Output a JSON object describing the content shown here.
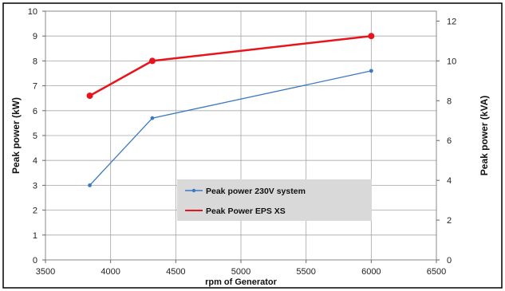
{
  "chart_data": {
    "type": "line",
    "xlabel": "rpm of Generator",
    "ylabel": "Peak power (kW)",
    "y2label": "Peak power (kVA)",
    "xlim": [
      3500,
      6500
    ],
    "ylim": [
      0,
      10
    ],
    "y2lim": [
      0,
      12.5
    ],
    "x_ticks": [
      "3500",
      "4000",
      "4500",
      "5000",
      "5500",
      "6000",
      "6500"
    ],
    "y_ticks": [
      "0",
      "1",
      "2",
      "3",
      "4",
      "5",
      "6",
      "7",
      "8",
      "9",
      "10"
    ],
    "y2_ticks": [
      "0",
      "2",
      "4",
      "6",
      "8",
      "10",
      "12"
    ],
    "grid": true,
    "legend_position": "bottom-center",
    "series": [
      {
        "name": "Peak power 230V system",
        "color": "#3a78c2",
        "axis": "left",
        "x": [
          3840,
          4320,
          6000
        ],
        "y": [
          3.0,
          5.7,
          7.6
        ]
      },
      {
        "name": "Peak Power EPS XS",
        "color": "#e8141c",
        "axis": "right",
        "x": [
          3840,
          4320,
          6000
        ],
        "y": [
          8.25,
          10.0,
          11.25
        ]
      }
    ]
  }
}
